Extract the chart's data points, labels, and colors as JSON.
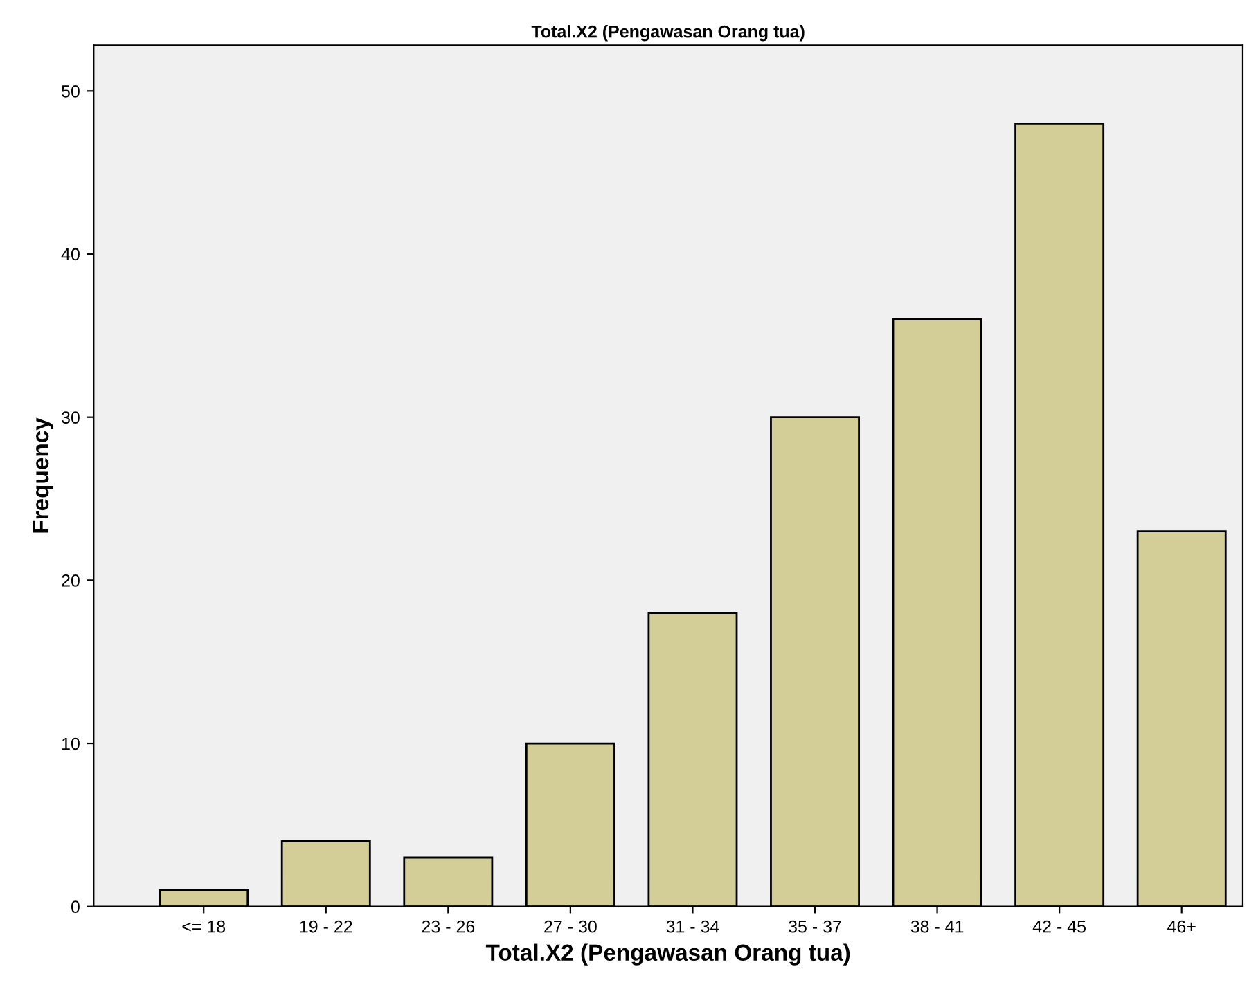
{
  "chart_data": {
    "type": "bar",
    "title": "Total.X2 (Pengawasan Orang tua)",
    "xlabel": "Total.X2 (Pengawasan Orang tua)",
    "ylabel": "Frequency",
    "categories": [
      "<= 18",
      "19 - 22",
      "23 - 26",
      "27 - 30",
      "31 - 34",
      "35 - 37",
      "38 - 41",
      "42 - 45",
      "46+"
    ],
    "values": [
      1,
      4,
      3,
      10,
      18,
      30,
      36,
      48,
      23
    ],
    "color": "#d3ce97",
    "ylim": [
      0,
      52.8
    ],
    "yticks": [
      0,
      10,
      20,
      30,
      40,
      50
    ],
    "grid": false
  }
}
